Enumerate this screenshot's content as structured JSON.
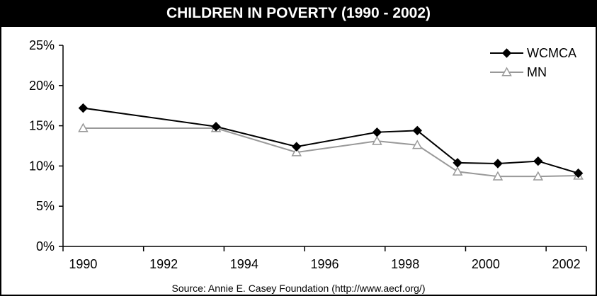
{
  "chart_data": {
    "type": "line",
    "title": "CHILDREN IN POVERTY (1990 - 2002)",
    "source": "Source: Annie E. Casey Foundation (http://www.aecf.org/)",
    "xlabel": "",
    "ylabel": "",
    "xlim": [
      1989.5,
      2002.5
    ],
    "ylim": [
      0,
      25
    ],
    "x_ticks": [
      "1990",
      "1992",
      "1994",
      "1996",
      "1998",
      "2000",
      "2002"
    ],
    "y_ticks": [
      "0%",
      "5%",
      "10%",
      "15%",
      "20%",
      "25%"
    ],
    "grid": false,
    "legend_position": "top-right",
    "series": [
      {
        "name": "WCMCA",
        "color": "#000000",
        "marker": "diamond",
        "x": [
          1990,
          1993.3,
          1995.3,
          1997.3,
          1998.3,
          1999.3,
          2000.3,
          2001.3,
          2002.3
        ],
        "y": [
          17.2,
          14.9,
          12.4,
          14.2,
          14.4,
          10.4,
          10.3,
          10.6,
          9.1
        ]
      },
      {
        "name": "MN",
        "color": "#999999",
        "marker": "triangle",
        "x": [
          1990,
          1993.3,
          1995.3,
          1997.3,
          1998.3,
          1999.3,
          2000.3,
          2001.3,
          2002.3
        ],
        "y": [
          14.7,
          14.7,
          11.7,
          13.1,
          12.6,
          9.3,
          8.7,
          8.7,
          8.8
        ]
      }
    ]
  }
}
